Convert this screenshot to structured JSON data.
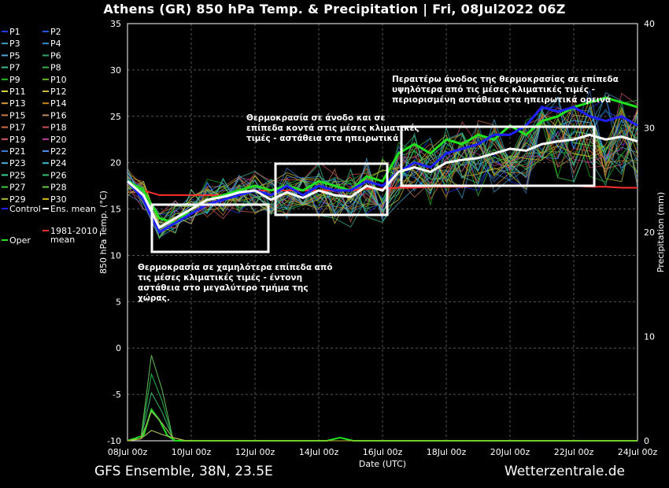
{
  "header": {
    "title": "Athens  (GR)  850 hPa Temp. & Precipitation | Fri, 08Jul2022 06Z"
  },
  "footer": {
    "left": "GFS Ensemble, 38N, 23.5E",
    "right": "Wetterzentrale.de"
  },
  "chart_data": {
    "type": "line",
    "title": "Athens  (GR)  850 hPa Temp. & Precipitation | Fri, 08Jul2022 06Z",
    "xlabel": "Date (UTC)",
    "ylabel": "850 hPa Temp. (°C)",
    "y2label": "Precipitation (mm)",
    "x_ticks": [
      "08Jul 00z",
      "10Jul 00z",
      "12Jul 00z",
      "14Jul 00z",
      "16Jul 00z",
      "18Jul 00z",
      "20Jul 00z",
      "22Jul 00z",
      "24Jul 00z"
    ],
    "y_ticks": [
      "35",
      "30",
      "25",
      "20",
      "15",
      "10",
      "5",
      "0",
      "-5",
      "-10"
    ],
    "y2_ticks": [
      "40",
      "30",
      "20",
      "10",
      "0"
    ],
    "ylim": [
      -10,
      35
    ],
    "y2lim": [
      0,
      40
    ],
    "x_range_hours": [
      0,
      384
    ],
    "grid": true,
    "legend_position": "left",
    "legend": [
      {
        "name": "P1",
        "color": "#1e3cff"
      },
      {
        "name": "P2",
        "color": "#2255dd"
      },
      {
        "name": "P3",
        "color": "#3aa0c8"
      },
      {
        "name": "P4",
        "color": "#2f8fd0"
      },
      {
        "name": "P5",
        "color": "#4aa8d8"
      },
      {
        "name": "P6",
        "color": "#2fa56a"
      },
      {
        "name": "P7",
        "color": "#3dbf9a"
      },
      {
        "name": "P8",
        "color": "#35b046"
      },
      {
        "name": "P9",
        "color": "#20c020"
      },
      {
        "name": "P10",
        "color": "#6ab82a"
      },
      {
        "name": "P11",
        "color": "#d8d040"
      },
      {
        "name": "P12",
        "color": "#c8b83a"
      },
      {
        "name": "P13",
        "color": "#d89a3a"
      },
      {
        "name": "P14",
        "color": "#c8871e"
      },
      {
        "name": "P15",
        "color": "#d07a50"
      },
      {
        "name": "P16",
        "color": "#c08a60"
      },
      {
        "name": "P17",
        "color": "#d86a4a"
      },
      {
        "name": "P18",
        "color": "#cc5050"
      },
      {
        "name": "P19",
        "color": "#d85a6a"
      },
      {
        "name": "P20",
        "color": "#c040a0"
      },
      {
        "name": "P21",
        "color": "#3a7ad8"
      },
      {
        "name": "P22",
        "color": "#4a8ae8"
      },
      {
        "name": "P23",
        "color": "#4ab0e0"
      },
      {
        "name": "P24",
        "color": "#3ac0d0"
      },
      {
        "name": "P25",
        "color": "#3ad098"
      },
      {
        "name": "P26",
        "color": "#30c070"
      },
      {
        "name": "P27",
        "color": "#40c840"
      },
      {
        "name": "P28",
        "color": "#60d040"
      },
      {
        "name": "P29",
        "color": "#a8c030"
      },
      {
        "name": "P30",
        "color": "#d8c020"
      },
      {
        "name": "Control",
        "color": "#2020ff"
      },
      {
        "name": "Ens. mean",
        "color": "#ffffff"
      },
      {
        "name": "Oper",
        "color": "#20e020"
      },
      {
        "name": "1981-2010\nmean",
        "color": "#ff3030"
      }
    ],
    "series_temp_hours": [
      0,
      12,
      24,
      36,
      48,
      60,
      72,
      84,
      96,
      108,
      120,
      132,
      144,
      156,
      168,
      180,
      192,
      204,
      216,
      228,
      240,
      252,
      264,
      276,
      288,
      300,
      312,
      324,
      336,
      348,
      360,
      372,
      384
    ],
    "series": [
      {
        "name": "Ens. mean",
        "color": "#ffffff",
        "values": [
          18,
          16.5,
          13,
          14,
          15,
          16,
          16.3,
          16.8,
          17,
          16,
          16.8,
          16.2,
          17,
          16.5,
          16.3,
          17.5,
          17,
          19,
          19.5,
          19,
          20,
          20.3,
          20.5,
          21,
          21.5,
          21.3,
          22,
          22.3,
          22.5,
          23,
          22.5,
          22.8,
          22.3
        ]
      },
      {
        "name": "Control",
        "color": "#2020ff",
        "values": [
          18,
          16,
          12.5,
          13.5,
          14.5,
          15.5,
          16,
          16.5,
          17,
          16.5,
          17.5,
          16.5,
          17.5,
          17,
          17,
          18,
          17.5,
          19,
          20,
          19.5,
          21,
          21.5,
          22,
          23,
          23,
          24,
          26,
          25.5,
          26,
          25,
          24.5,
          25,
          24
        ]
      },
      {
        "name": "Oper",
        "color": "#20e020",
        "values": [
          18,
          17,
          14,
          13.5,
          15,
          16,
          16.5,
          17,
          17.5,
          17,
          17.5,
          17,
          18,
          17.5,
          17,
          18.5,
          18,
          21,
          22,
          21,
          22.5,
          22,
          23,
          22.5,
          24,
          23,
          24.5,
          25,
          26,
          26.5,
          27,
          26.5,
          26
        ]
      },
      {
        "name": "1981-2010 mean",
        "color": "#ff3030",
        "values": [
          18,
          17,
          16.5,
          16.5,
          16.5,
          16.5,
          16.5,
          16.8,
          17,
          17,
          17,
          17,
          17,
          17,
          17,
          17.2,
          17.2,
          17.3,
          17.3,
          17.4,
          17.4,
          17.4,
          17.5,
          17.5,
          17.5,
          17.5,
          17.5,
          17.5,
          17.5,
          17.4,
          17.4,
          17.3,
          17.3
        ]
      }
    ],
    "precipitation": {
      "hours": [
        0,
        12,
        18,
        24,
        30,
        36,
        48,
        60,
        150,
        160,
        170,
        384
      ],
      "values": [
        0,
        0.5,
        3,
        2,
        0.5,
        0,
        0,
        0,
        0,
        0.3,
        0,
        0
      ]
    },
    "annotations": [
      {
        "text": "Θερμοκρασία σε χαμηλότερα επίπεδα από\nτις μέσες κλιματικές τιμές - έντονη\nαστάθεια στο μεγαλύτερο τμήμα της\nχώρας."
      },
      {
        "text": "Θερμοκρασία σε άνοδο και σε\nεπίπεδα κοντά στις μέσες κλιματικές\nτιμές - αστάθεια στα ηπειρωτικά"
      },
      {
        "text": "Περαιτέρω άνοδος της θερμοκρασίας σε επίπεδα\nυψηλότερα από τις μέσες κλιματικές τιμές -\nπεριορισμένη αστάθεια στα ηπειρωτικά ορεινά"
      }
    ]
  }
}
